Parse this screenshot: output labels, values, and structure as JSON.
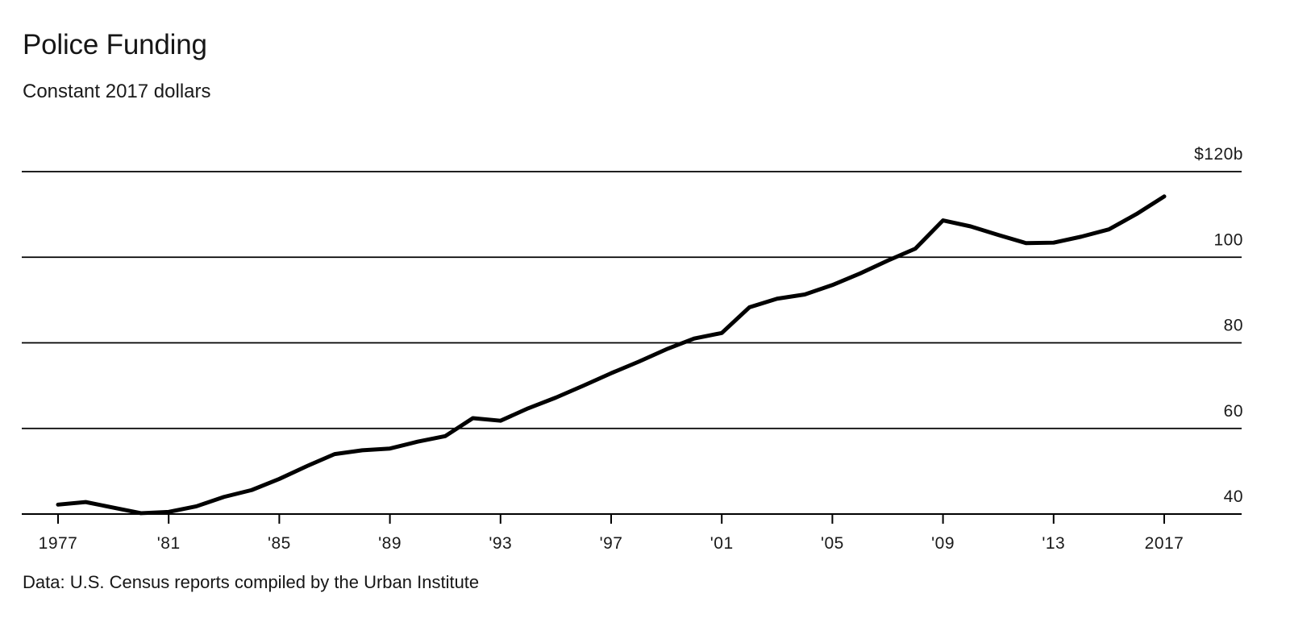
{
  "header": {
    "title": "Police Funding",
    "subtitle": "Constant 2017 dollars"
  },
  "footer": {
    "source": "Data: U.S. Census reports compiled by the Urban Institute"
  },
  "colors": {
    "background": "#ffffff",
    "line": "#000000",
    "grid": "#000000",
    "text": "#1a1a1a"
  },
  "chart_data": {
    "type": "line",
    "title": "Police Funding",
    "subtitle": "Constant 2017 dollars",
    "series_name": "Police funding, billions of constant 2017 dollars",
    "x": [
      1977,
      1978,
      1979,
      1980,
      1981,
      1982,
      1983,
      1984,
      1985,
      1986,
      1987,
      1988,
      1989,
      1990,
      1991,
      1992,
      1993,
      1994,
      1995,
      1996,
      1997,
      1998,
      1999,
      2000,
      2001,
      2002,
      2003,
      2004,
      2005,
      2006,
      2007,
      2008,
      2009,
      2010,
      2011,
      2012,
      2013,
      2014,
      2015,
      2016,
      2017
    ],
    "values": [
      42.2,
      42.8,
      41.5,
      40.2,
      40.5,
      41.8,
      44.0,
      45.6,
      48.2,
      51.2,
      54.0,
      54.9,
      55.3,
      56.9,
      58.2,
      62.4,
      61.8,
      64.7,
      67.2,
      70.0,
      72.9,
      75.6,
      78.5,
      81.0,
      82.3,
      88.3,
      90.3,
      91.3,
      93.5,
      96.2,
      99.2,
      102.0,
      108.6,
      107.2,
      105.2,
      103.3,
      103.4,
      104.8,
      106.5,
      110.1,
      114.2
    ],
    "x_ticks": [
      {
        "year": 1977,
        "label": "1977"
      },
      {
        "year": 1981,
        "label": "'81"
      },
      {
        "year": 1985,
        "label": "'85"
      },
      {
        "year": 1989,
        "label": "'89"
      },
      {
        "year": 1993,
        "label": "'93"
      },
      {
        "year": 1997,
        "label": "'97"
      },
      {
        "year": 2001,
        "label": "'01"
      },
      {
        "year": 2005,
        "label": "'05"
      },
      {
        "year": 2009,
        "label": "'09"
      },
      {
        "year": 2013,
        "label": "'13"
      },
      {
        "year": 2017,
        "label": "2017"
      }
    ],
    "y_ticks": [
      {
        "value": 120,
        "label": "$120b"
      },
      {
        "value": 100,
        "label": "100"
      },
      {
        "value": 80,
        "label": "80"
      },
      {
        "value": 60,
        "label": "60"
      },
      {
        "value": 40,
        "label": "40"
      }
    ],
    "xlim": [
      1977,
      2017
    ],
    "ylim": [
      40,
      120
    ],
    "grid": "horizontal",
    "legend": "none"
  }
}
